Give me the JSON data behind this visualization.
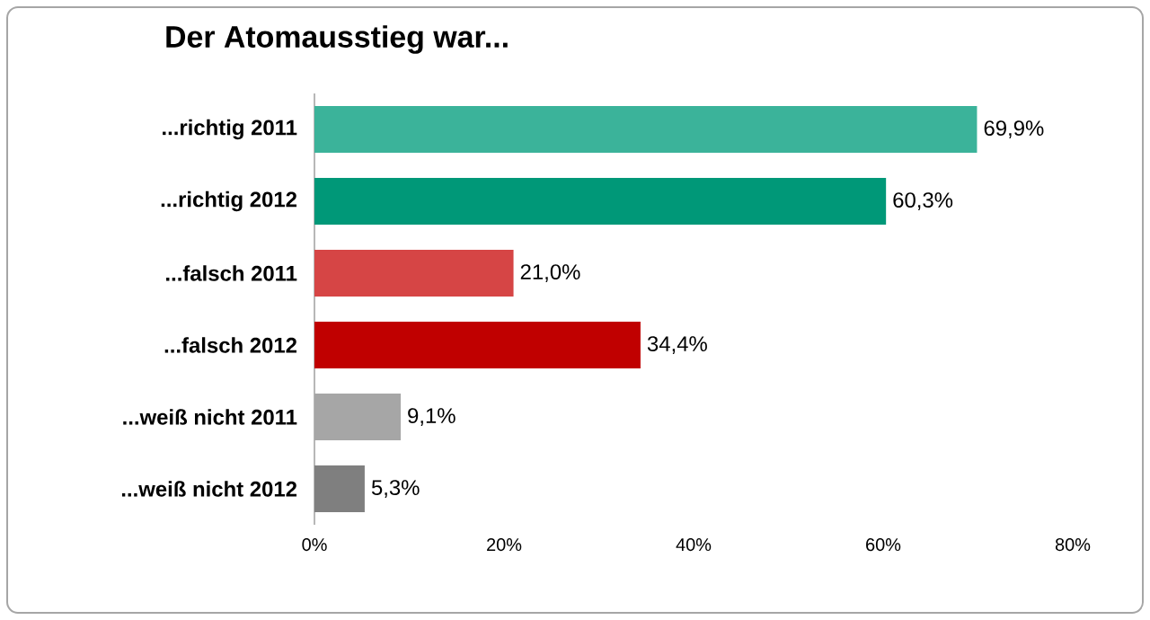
{
  "chart_data": {
    "type": "bar",
    "orientation": "horizontal",
    "title": "Der Atomausstieg  war...",
    "categories": [
      "...richtig 2011",
      "...richtig 2012",
      "...falsch 2011",
      "...falsch 2012",
      "...weiß nicht 2011",
      "...weiß nicht 2012"
    ],
    "values": [
      69.9,
      60.3,
      21.0,
      34.4,
      9.1,
      5.3
    ],
    "value_labels": [
      "69,9%",
      "60,3%",
      "21,0%",
      "34,4%",
      "9,1%",
      "5,3%"
    ],
    "colors": [
      "#3bb39a",
      "#009878",
      "#d64545",
      "#c00000",
      "#a6a6a6",
      "#7f7f7f"
    ],
    "xlim": [
      0,
      80
    ],
    "xticks": [
      {
        "value": 0,
        "label": "0%"
      },
      {
        "value": 20,
        "label": "20%"
      },
      {
        "value": 40,
        "label": "40%"
      },
      {
        "value": 60,
        "label": "60%"
      },
      {
        "value": 80,
        "label": "80%"
      }
    ]
  }
}
